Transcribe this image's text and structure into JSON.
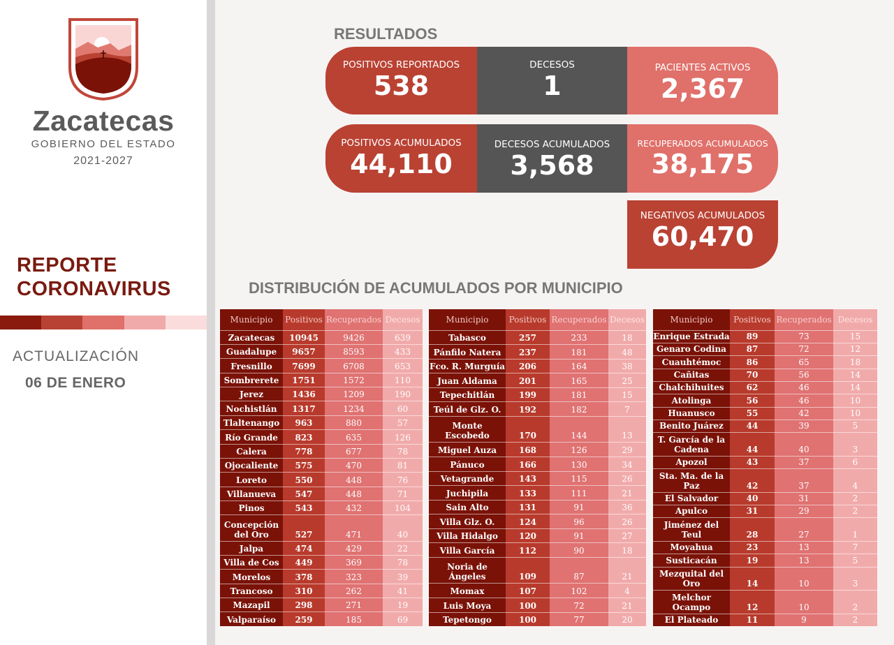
{
  "brand": {
    "name": "Zacatecas",
    "government": "GOBIERNO DEL ESTADO",
    "years": "2021-2027"
  },
  "report": {
    "line1": "REPORTE",
    "line2": "CORONAVIRUS",
    "update_label": "ACTUALIZACIÓN",
    "update_date": "06 DE ENERO"
  },
  "colors": {
    "dark_red": "#7a1208",
    "red": "#b94233",
    "gray": "#555555",
    "pink": "#e0706a",
    "light_pink": "#f1aaaa"
  },
  "results": {
    "title": "RESULTADOS",
    "positivos_reportados": {
      "label": "POSITIVOS REPORTADOS",
      "value": "538"
    },
    "decesos": {
      "label": "DECESOS",
      "value": "1"
    },
    "pacientes_activos": {
      "label": "PACIENTES ACTIVOS",
      "value": "2,367"
    },
    "positivos_acumulados": {
      "label": "POSITIVOS ACUMULADOS",
      "value": "44,110"
    },
    "decesos_acumulados": {
      "label": "DECESOS ACUMULADOS",
      "value": "3,568"
    },
    "recuperados_acumulados": {
      "label": "RECUPERADOS ACUMULADOS",
      "value": "38,175"
    },
    "negativos_acumulados": {
      "label": "NEGATIVOS ACUMULADOS",
      "value": "60,470"
    }
  },
  "distribution": {
    "title": "DISTRIBUCIÓN DE ACUMULADOS POR MUNICIPIO",
    "headers": [
      "Municipio",
      "Positivos",
      "Recuperados",
      "Decesos"
    ],
    "tables": [
      [
        [
          "Zacatecas",
          "10945",
          "9426",
          "639"
        ],
        [
          "Guadalupe",
          "9657",
          "8593",
          "433"
        ],
        [
          "Fresnillo",
          "7699",
          "6708",
          "653"
        ],
        [
          "Sombrerete",
          "1751",
          "1572",
          "110"
        ],
        [
          "Jerez",
          "1436",
          "1209",
          "190"
        ],
        [
          "Nochistlán",
          "1317",
          "1234",
          "60"
        ],
        [
          "Tlaltenango",
          "963",
          "880",
          "57"
        ],
        [
          "Río Grande",
          "823",
          "635",
          "126"
        ],
        [
          "Calera",
          "778",
          "677",
          "78"
        ],
        [
          "Ojocaliente",
          "575",
          "470",
          "81"
        ],
        [
          "Loreto",
          "550",
          "448",
          "76"
        ],
        [
          "Villanueva",
          "547",
          "448",
          "71"
        ],
        [
          "Pinos",
          "543",
          "432",
          "104"
        ],
        [
          "Concepción del Oro",
          "527",
          "471",
          "40"
        ],
        [
          "Jalpa",
          "474",
          "429",
          "22"
        ],
        [
          "Villa de Cos",
          "449",
          "369",
          "78"
        ],
        [
          "Morelos",
          "378",
          "323",
          "39"
        ],
        [
          "Trancoso",
          "310",
          "262",
          "41"
        ],
        [
          "Mazapil",
          "298",
          "271",
          "19"
        ],
        [
          "Valparaíso",
          "259",
          "185",
          "69"
        ]
      ],
      [
        [
          "Tabasco",
          "257",
          "233",
          "18"
        ],
        [
          "Pánfilo Natera",
          "237",
          "181",
          "48"
        ],
        [
          "Fco. R. Murguía",
          "206",
          "164",
          "38"
        ],
        [
          "Juan Aldama",
          "201",
          "165",
          "25"
        ],
        [
          "Tepechitlán",
          "199",
          "181",
          "15"
        ],
        [
          "Teúl de Glz. O.",
          "192",
          "182",
          "7"
        ],
        [
          "Monte Escobedo",
          "170",
          "144",
          "13"
        ],
        [
          "Miguel Auza",
          "168",
          "126",
          "29"
        ],
        [
          "Pánuco",
          "166",
          "130",
          "34"
        ],
        [
          "Vetagrande",
          "143",
          "115",
          "26"
        ],
        [
          "Juchipila",
          "133",
          "111",
          "21"
        ],
        [
          "Sain Alto",
          "131",
          "91",
          "36"
        ],
        [
          "Villa Glz. O.",
          "124",
          "96",
          "26"
        ],
        [
          "Villa Hidalgo",
          "120",
          "91",
          "27"
        ],
        [
          "Villa García",
          "112",
          "90",
          "18"
        ],
        [
          "Noria de Ángeles",
          "109",
          "87",
          "21"
        ],
        [
          "Momax",
          "107",
          "102",
          "4"
        ],
        [
          "Luis Moya",
          "100",
          "72",
          "21"
        ],
        [
          "Tepetongo",
          "100",
          "77",
          "20"
        ]
      ],
      [
        [
          "Enrique Estrada",
          "89",
          "73",
          "15"
        ],
        [
          "Genaro Codina",
          "87",
          "72",
          "12"
        ],
        [
          "Cuauhtémoc",
          "86",
          "65",
          "18"
        ],
        [
          "Cañitas",
          "70",
          "56",
          "14"
        ],
        [
          "Chalchihuites",
          "62",
          "46",
          "14"
        ],
        [
          "Atolinga",
          "56",
          "46",
          "10"
        ],
        [
          "Huanusco",
          "55",
          "42",
          "10"
        ],
        [
          "Benito Juárez",
          "44",
          "39",
          "5"
        ],
        [
          "T. García de la Cadena",
          "44",
          "40",
          "3"
        ],
        [
          "Apozol",
          "43",
          "37",
          "6"
        ],
        [
          "Sta. Ma. de la Paz",
          "42",
          "37",
          "4"
        ],
        [
          "El Salvador",
          "40",
          "31",
          "2"
        ],
        [
          "Apulco",
          "31",
          "29",
          "2"
        ],
        [
          "Jiménez del Teul",
          "28",
          "27",
          "1"
        ],
        [
          "Moyahua",
          "23",
          "13",
          "7"
        ],
        [
          "Susticacán",
          "19",
          "13",
          "5"
        ],
        [
          "Mezquital del Oro",
          "14",
          "10",
          "3"
        ],
        [
          "Melchor Ocampo",
          "12",
          "10",
          "2"
        ],
        [
          "El Plateado",
          "11",
          "9",
          "2"
        ]
      ]
    ]
  }
}
